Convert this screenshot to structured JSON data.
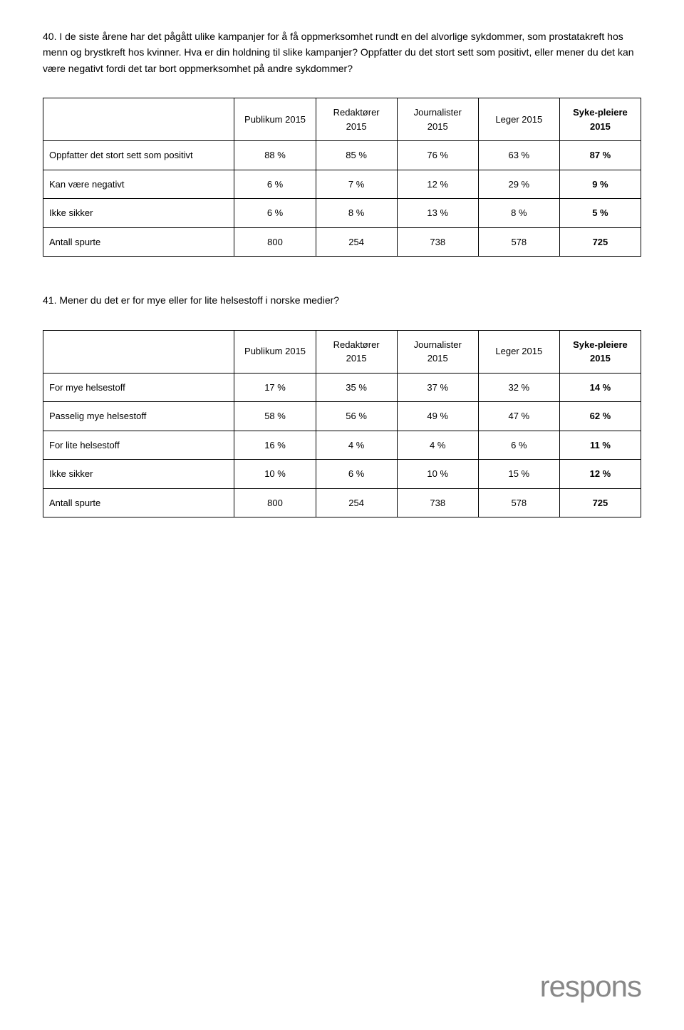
{
  "question40": {
    "text": "40. I de siste årene har det pågått ulike kampanjer for å få oppmerksomhet rundt en del alvorlige sykdommer, som prostatakreft hos menn og brystkreft hos kvinner. Hva er din holdning til slike kampanjer? Oppfatter du det stort sett som positivt, eller mener du det kan være negativt fordi det tar bort oppmerksomhet på andre sykdommer?"
  },
  "table40": {
    "headers": [
      "",
      "Publikum 2015",
      "Redaktører 2015",
      "Journalister 2015",
      "Leger 2015",
      "Syke-pleiere 2015"
    ],
    "rows": [
      {
        "label": "Oppfatter det stort sett som positivt",
        "values": [
          "88 %",
          "85 %",
          "76 %",
          "63 %",
          "87 %"
        ]
      },
      {
        "label": "Kan være negativt",
        "values": [
          "6 %",
          "7 %",
          "12 %",
          "29 %",
          "9 %"
        ]
      },
      {
        "label": "Ikke sikker",
        "values": [
          "6 %",
          "8 %",
          "13 %",
          "8 %",
          "5 %"
        ]
      },
      {
        "label": "Antall spurte",
        "values": [
          "800",
          "254",
          "738",
          "578",
          "725"
        ]
      }
    ]
  },
  "question41": {
    "text": "41. Mener du det er for mye eller for lite helsestoff i norske medier?"
  },
  "table41": {
    "headers": [
      "",
      "Publikum 2015",
      "Redaktører 2015",
      "Journalister 2015",
      "Leger 2015",
      "Syke-pleiere 2015"
    ],
    "rows": [
      {
        "label": "For mye helsestoff",
        "values": [
          "17 %",
          "35 %",
          "37 %",
          "32 %",
          "14 %"
        ]
      },
      {
        "label": "Passelig mye helsestoff",
        "values": [
          "58 %",
          "56 %",
          "49 %",
          "47 %",
          "62 %"
        ]
      },
      {
        "label": "For lite helsestoff",
        "values": [
          "16 %",
          "4 %",
          "4 %",
          "6 %",
          "11 %"
        ]
      },
      {
        "label": "Ikke sikker",
        "values": [
          "10 %",
          "6 %",
          "10 %",
          "15 %",
          "12 %"
        ]
      },
      {
        "label": "Antall spurte",
        "values": [
          "800",
          "254",
          "738",
          "578",
          "725"
        ]
      }
    ]
  },
  "logo": "respons"
}
